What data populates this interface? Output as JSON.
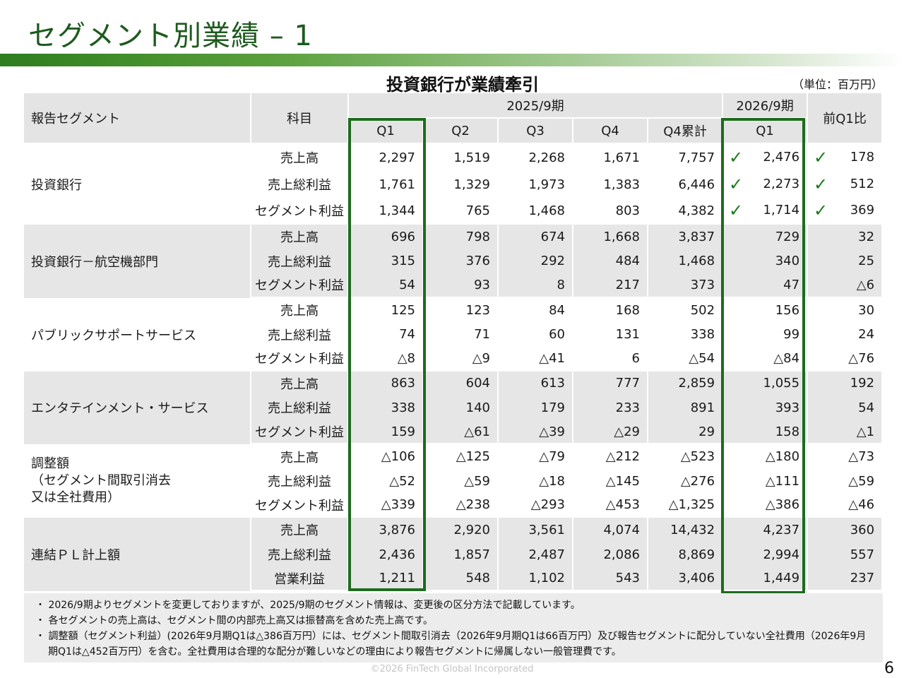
{
  "page": {
    "title": "セグメント別業績 – 1",
    "subtitle": "投資銀行が業績牽引",
    "unit": "（単位：百万円）",
    "footer": "©2026 FinTech Global Incorporated",
    "page_number": "6"
  },
  "header": {
    "segment": "報告セグメント",
    "item": "科目",
    "fy2025": "2025/9期",
    "fy2026": "2026/9期",
    "yoy": "前Q1比",
    "q1": "Q1",
    "q2": "Q2",
    "q3": "Q3",
    "q4": "Q4",
    "q4cum": "Q4累計",
    "q1_2026": "Q1"
  },
  "check_icon": "check-icon",
  "accent_color": "#1e6b1e",
  "segments": [
    {
      "name": "投資銀行",
      "rows": [
        {
          "item": "売上高",
          "q1": "2,297",
          "q2": "1,519",
          "q3": "2,268",
          "q4": "1,671",
          "cum": "7,757",
          "fy26q1": "2,476",
          "yoy": "178"
        },
        {
          "item": "売上総利益",
          "q1": "1,761",
          "q2": "1,329",
          "q3": "1,973",
          "q4": "1,383",
          "cum": "6,446",
          "fy26q1": "2,273",
          "yoy": "512"
        },
        {
          "item": "セグメント利益",
          "q1": "1,344",
          "q2": "765",
          "q3": "1,468",
          "q4": "803",
          "cum": "4,382",
          "fy26q1": "1,714",
          "yoy": "369"
        }
      ]
    },
    {
      "name": "投資銀行－航空機部門",
      "rows": [
        {
          "item": "売上高",
          "q1": "696",
          "q2": "798",
          "q3": "674",
          "q4": "1,668",
          "cum": "3,837",
          "fy26q1": "729",
          "yoy": "32"
        },
        {
          "item": "売上総利益",
          "q1": "315",
          "q2": "376",
          "q3": "292",
          "q4": "484",
          "cum": "1,468",
          "fy26q1": "340",
          "yoy": "25"
        },
        {
          "item": "セグメント利益",
          "q1": "54",
          "q2": "93",
          "q3": "8",
          "q4": "217",
          "cum": "373",
          "fy26q1": "47",
          "yoy": "△6"
        }
      ]
    },
    {
      "name": "パブリックサポートサービス",
      "rows": [
        {
          "item": "売上高",
          "q1": "125",
          "q2": "123",
          "q3": "84",
          "q4": "168",
          "cum": "502",
          "fy26q1": "156",
          "yoy": "30"
        },
        {
          "item": "売上総利益",
          "q1": "74",
          "q2": "71",
          "q3": "60",
          "q4": "131",
          "cum": "338",
          "fy26q1": "99",
          "yoy": "24"
        },
        {
          "item": "セグメント利益",
          "q1": "△8",
          "q2": "△9",
          "q3": "△41",
          "q4": "6",
          "cum": "△54",
          "fy26q1": "△84",
          "yoy": "△76"
        }
      ]
    },
    {
      "name": "エンタテインメント・サービス",
      "rows": [
        {
          "item": "売上高",
          "q1": "863",
          "q2": "604",
          "q3": "613",
          "q4": "777",
          "cum": "2,859",
          "fy26q1": "1,055",
          "yoy": "192"
        },
        {
          "item": "売上総利益",
          "q1": "338",
          "q2": "140",
          "q3": "179",
          "q4": "233",
          "cum": "891",
          "fy26q1": "393",
          "yoy": "54"
        },
        {
          "item": "セグメント利益",
          "q1": "159",
          "q2": "△61",
          "q3": "△39",
          "q4": "△29",
          "cum": "29",
          "fy26q1": "158",
          "yoy": "△1"
        }
      ]
    },
    {
      "name_lines": [
        "調整額",
        "（セグメント間取引消去",
        "又は全社費用）"
      ],
      "rows": [
        {
          "item": "売上高",
          "q1": "△106",
          "q2": "△125",
          "q3": "△79",
          "q4": "△212",
          "cum": "△523",
          "fy26q1": "△180",
          "yoy": "△73"
        },
        {
          "item": "売上総利益",
          "q1": "△52",
          "q2": "△59",
          "q3": "△18",
          "q4": "△145",
          "cum": "△276",
          "fy26q1": "△111",
          "yoy": "△59"
        },
        {
          "item": "セグメント利益",
          "q1": "△339",
          "q2": "△238",
          "q3": "△293",
          "q4": "△453",
          "cum": "△1,325",
          "fy26q1": "△386",
          "yoy": "△46"
        }
      ]
    },
    {
      "name": "連結ＰＬ計上額",
      "rows": [
        {
          "item": "売上高",
          "q1": "3,876",
          "q2": "2,920",
          "q3": "3,561",
          "q4": "4,074",
          "cum": "14,432",
          "fy26q1": "4,237",
          "yoy": "360"
        },
        {
          "item": "売上総利益",
          "q1": "2,436",
          "q2": "1,857",
          "q3": "2,487",
          "q4": "2,086",
          "cum": "8,869",
          "fy26q1": "2,994",
          "yoy": "557"
        },
        {
          "item": "営業利益",
          "q1": "1,211",
          "q2": "548",
          "q3": "1,102",
          "q4": "543",
          "cum": "3,406",
          "fy26q1": "1,449",
          "yoy": "237"
        }
      ]
    }
  ],
  "notes": [
    "2026/9期よりセグメントを変更しておりますが、2025/9期のセグメント情報は、変更後の区分方法で記載しています。",
    "各セグメントの売上高は、セグメント間の内部売上高又は振替高を含めた売上高です。",
    "調整額（セグメント利益）(2026年9月期Q1は△386百万円）には、セグメント間取引消去（2026年9月期Q1は66百万円）及び報告セグメントに配分していない全社費用（2026年9月期Q1は△452百万円）を含む。全社費用は合理的な配分が難しいなどの理由により報告セグメントに帰属しない一般管理費です。"
  ]
}
